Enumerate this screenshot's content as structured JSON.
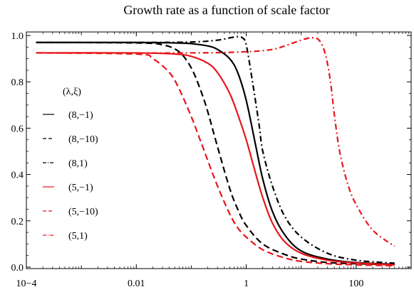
{
  "chart_data": {
    "type": "line",
    "title": "Growth rate as a function of scale factor",
    "xlabel": "",
    "ylabel": "",
    "x_scale": "log",
    "xlim": [
      0.0001,
      1000
    ],
    "ylim": [
      0.0,
      1.0
    ],
    "grid": false,
    "legend_placement": "left",
    "x_ticks": [
      {
        "value": 0.0001,
        "label": "10−4"
      },
      {
        "value": 0.01,
        "label": "0.01"
      },
      {
        "value": 1,
        "label": "1"
      },
      {
        "value": 100,
        "label": "100"
      }
    ],
    "y_ticks": [
      {
        "value": 0.0,
        "label": "0.0"
      },
      {
        "value": 0.2,
        "label": "0.2"
      },
      {
        "value": 0.4,
        "label": "0.4"
      },
      {
        "value": 0.6,
        "label": "0.6"
      },
      {
        "value": 0.8,
        "label": "0.8"
      },
      {
        "value": 1.0,
        "label": "1.0"
      }
    ],
    "legend_title": "(λ,ξ)",
    "series": [
      {
        "name": "(8,−1)",
        "color": "#000000",
        "dash": "solid",
        "x": [
          0.00015,
          0.01,
          0.05,
          0.1,
          0.2,
          0.3,
          0.5,
          0.7,
          1,
          1.5,
          2,
          3,
          5,
          10,
          30,
          100,
          500
        ],
        "y": [
          0.97,
          0.97,
          0.968,
          0.965,
          0.955,
          0.94,
          0.9,
          0.84,
          0.72,
          0.52,
          0.38,
          0.24,
          0.14,
          0.07,
          0.035,
          0.02,
          0.012
        ]
      },
      {
        "name": "(8,−10)",
        "color": "#000000",
        "dash": "dashed",
        "x": [
          0.00015,
          0.01,
          0.03,
          0.06,
          0.1,
          0.15,
          0.2,
          0.3,
          0.5,
          0.7,
          1,
          2,
          5,
          10,
          30,
          100,
          500
        ],
        "y": [
          0.97,
          0.968,
          0.96,
          0.93,
          0.86,
          0.76,
          0.67,
          0.52,
          0.34,
          0.25,
          0.18,
          0.1,
          0.055,
          0.035,
          0.02,
          0.015,
          0.01
        ]
      },
      {
        "name": "(8,1)",
        "color": "#000000",
        "dash": "dashdot",
        "x": [
          0.00015,
          0.01,
          0.1,
          0.3,
          0.5,
          0.7,
          0.85,
          1,
          1.3,
          1.7,
          2,
          3,
          5,
          10,
          30,
          100,
          500
        ],
        "y": [
          0.97,
          0.97,
          0.972,
          0.98,
          0.99,
          0.995,
          0.99,
          0.96,
          0.8,
          0.62,
          0.5,
          0.35,
          0.22,
          0.13,
          0.06,
          0.03,
          0.017
        ]
      },
      {
        "name": "(5,−1)",
        "color": "#e8151b",
        "dash": "solid",
        "x": [
          0.00015,
          0.01,
          0.05,
          0.1,
          0.2,
          0.3,
          0.5,
          0.7,
          1,
          1.5,
          2,
          3,
          5,
          10,
          30,
          100,
          500
        ],
        "y": [
          0.925,
          0.925,
          0.92,
          0.91,
          0.88,
          0.84,
          0.75,
          0.66,
          0.55,
          0.4,
          0.3,
          0.19,
          0.11,
          0.06,
          0.03,
          0.018,
          0.01
        ]
      },
      {
        "name": "(5,−10)",
        "color": "#e8151b",
        "dash": "dashed",
        "x": [
          0.00015,
          0.01,
          0.02,
          0.04,
          0.06,
          0.1,
          0.15,
          0.2,
          0.3,
          0.5,
          0.7,
          1,
          2,
          5,
          10,
          30,
          100,
          500
        ],
        "y": [
          0.925,
          0.92,
          0.9,
          0.84,
          0.77,
          0.65,
          0.54,
          0.46,
          0.35,
          0.23,
          0.17,
          0.13,
          0.075,
          0.04,
          0.025,
          0.015,
          0.01,
          0.006
        ]
      },
      {
        "name": "(5,1)",
        "color": "#e8151b",
        "dash": "dashdot",
        "x": [
          0.00015,
          0.1,
          1,
          3,
          5,
          10,
          15,
          20,
          25,
          30,
          35,
          40,
          50,
          70,
          100,
          200,
          500
        ],
        "y": [
          0.925,
          0.925,
          0.93,
          0.94,
          0.955,
          0.98,
          0.99,
          0.985,
          0.95,
          0.88,
          0.78,
          0.66,
          0.5,
          0.36,
          0.27,
          0.16,
          0.09
        ]
      }
    ]
  }
}
